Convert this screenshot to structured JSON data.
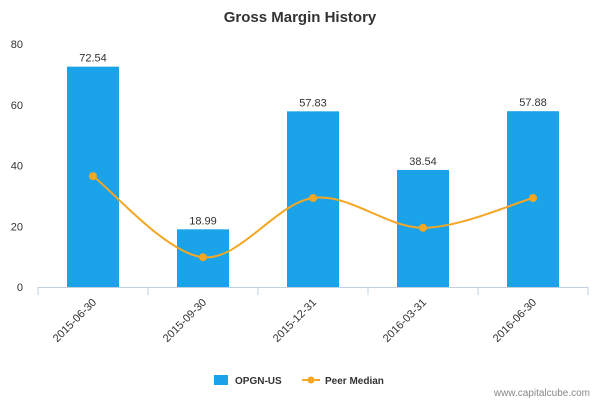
{
  "chart_data": {
    "type": "bar",
    "title": "Gross Margin History",
    "categories": [
      "2015-06-30",
      "2015-09-30",
      "2015-12-31",
      "2016-03-31",
      "2016-06-30"
    ],
    "series": [
      {
        "name": "OPGN-US",
        "kind": "bar",
        "color": "#1aa3e8",
        "values": [
          72.54,
          18.99,
          57.83,
          38.54,
          57.88
        ],
        "value_labels": [
          "72.54",
          "18.99",
          "57.83",
          "38.54",
          "57.88"
        ]
      },
      {
        "name": "Peer Median",
        "kind": "line",
        "color": "#f5a623",
        "values": [
          36.5,
          9.8,
          29.3,
          19.5,
          29.3
        ]
      }
    ],
    "ylim": [
      0,
      80
    ],
    "yticks": [
      0,
      20,
      40,
      60,
      80
    ],
    "grid": false,
    "legend_position": "bottom-center",
    "credit": "www.capitalcube.com"
  }
}
